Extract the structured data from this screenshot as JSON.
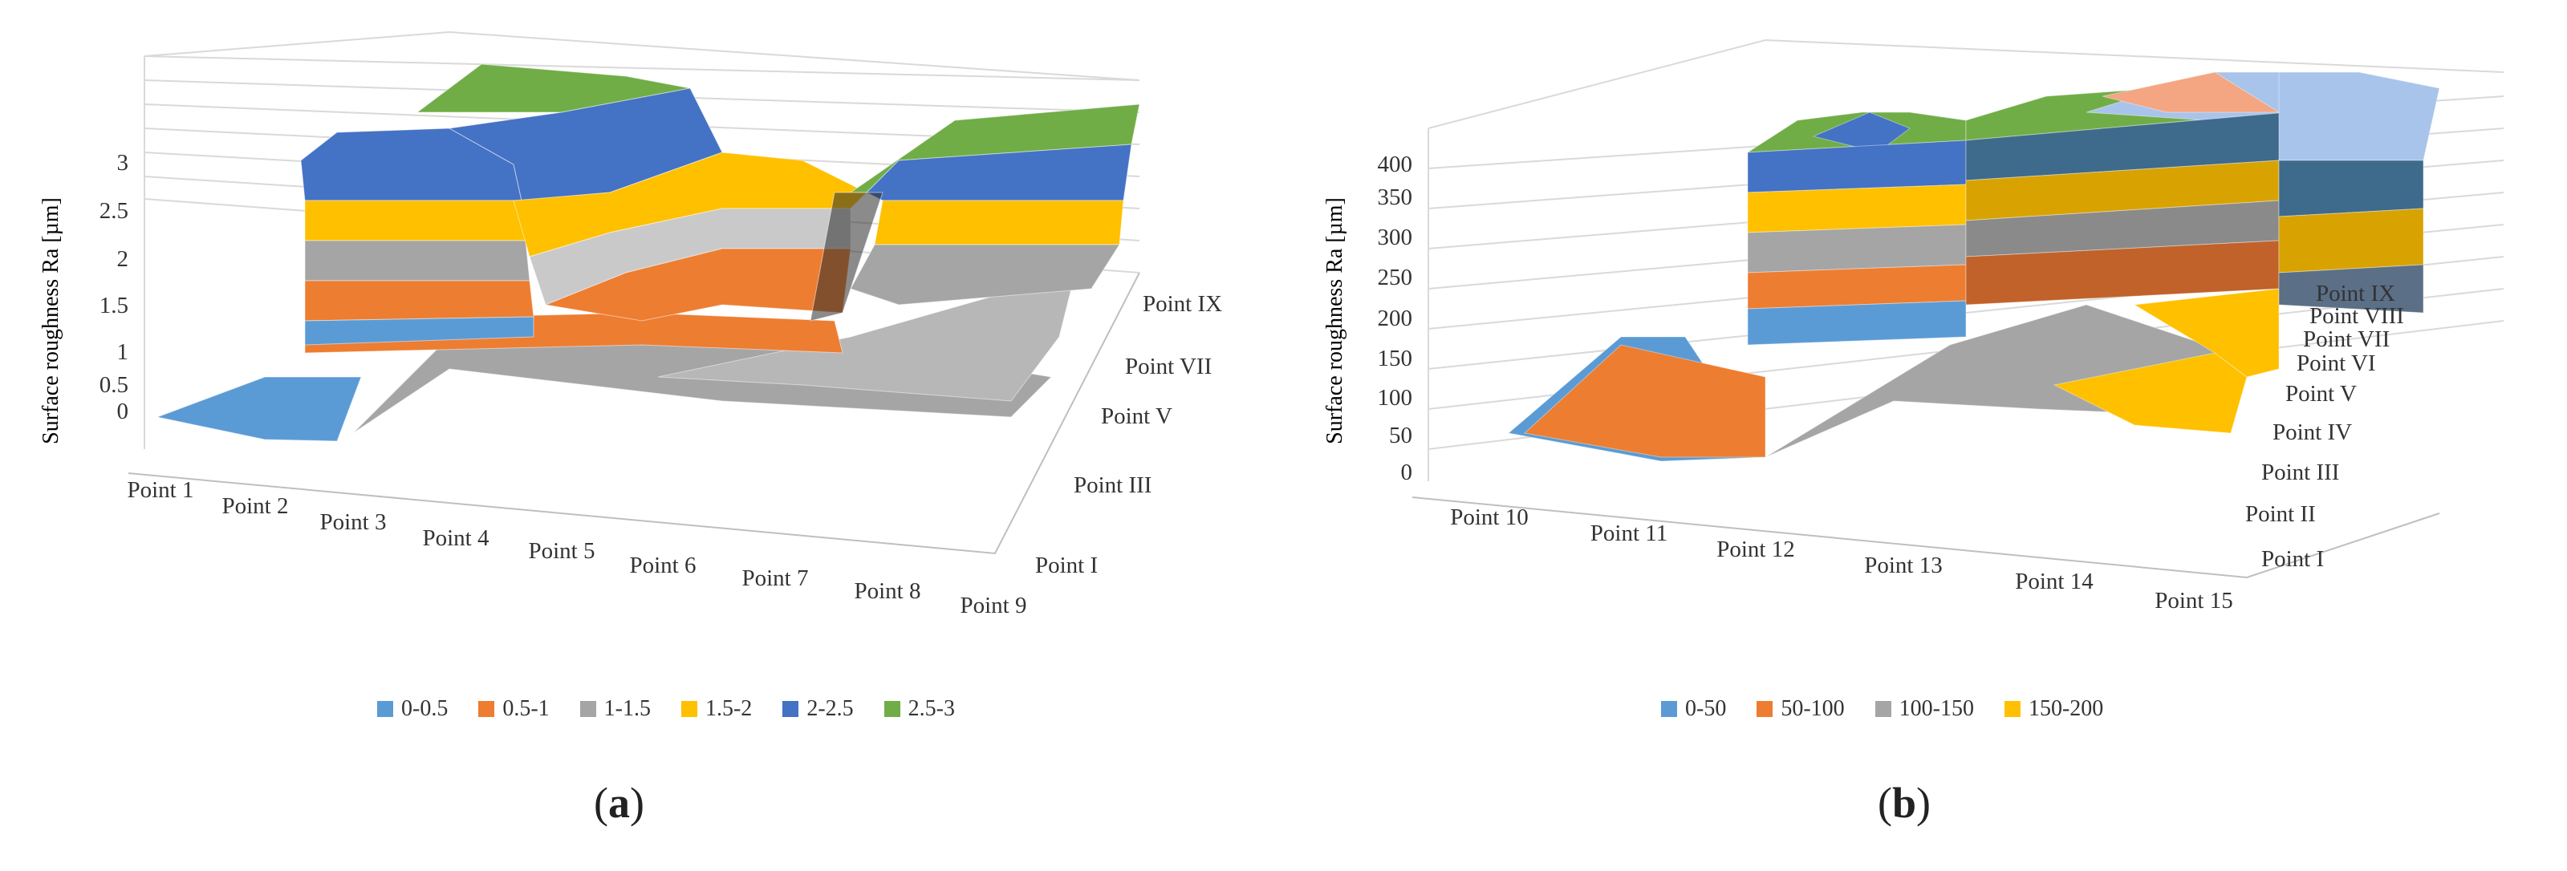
{
  "chart_data": [
    {
      "type": "surface",
      "panel_label": "a",
      "ylabel": "Surface roughness Ra [µm]",
      "ylim": [
        0,
        3
      ],
      "y_ticks": [
        "0",
        "0.5",
        "1",
        "1.5",
        "2",
        "2.5",
        "3"
      ],
      "x_categories": [
        "Point 1",
        "Point 2",
        "Point 3",
        "Point 4",
        "Point 5",
        "Point 6",
        "Point 7",
        "Point 8",
        "Point 9"
      ],
      "depth_categories": [
        "Point I",
        "Point III",
        "Point V",
        "Point VII",
        "Point IX"
      ],
      "legend": [
        {
          "label": "0-0.5",
          "color": "#5b9bd5"
        },
        {
          "label": "0.5-1",
          "color": "#ed7d31"
        },
        {
          "label": "1-1.5",
          "color": "#a5a5a5"
        },
        {
          "label": "1.5-2",
          "color": "#ffc000"
        },
        {
          "label": "2-2.5",
          "color": "#4472c4"
        },
        {
          "label": "2.5-3",
          "color": "#70ad47"
        }
      ],
      "front_profile": [
        0.3,
        0.3,
        2.4,
        2.9,
        1.7,
        1.1,
        1.2,
        1.0,
        0.6
      ],
      "back_profile": [
        2.4,
        2.8,
        3.0,
        2.9,
        1.9,
        1.8,
        1.9,
        2.9,
        3.0
      ]
    },
    {
      "type": "surface",
      "panel_label": "b",
      "ylabel": "Surface roughness Ra [µm]",
      "ylim": [
        0,
        400
      ],
      "y_ticks": [
        "0",
        "50",
        "100",
        "150",
        "200",
        "250",
        "300",
        "350",
        "400"
      ],
      "x_categories": [
        "Point 10",
        "Point 11",
        "Point 12",
        "Point 13",
        "Point 14",
        "Point 15"
      ],
      "depth_categories": [
        "Point I",
        "Point II",
        "Point III",
        "Point IV",
        "Point V",
        "Point VI",
        "Point VII",
        "Point VIII",
        "Point IX"
      ],
      "legend": [
        {
          "label": "0-50",
          "color": "#5b9bd5"
        },
        {
          "label": "50-100",
          "color": "#ed7d31"
        },
        {
          "label": "100-150",
          "color": "#a5a5a5"
        },
        {
          "label": "150-200",
          "color": "#ffc000"
        }
      ],
      "front_profile": [
        40,
        55,
        60,
        140,
        120,
        110
      ],
      "back_profile": [
        70,
        390,
        400,
        400,
        410,
        410
      ]
    }
  ]
}
